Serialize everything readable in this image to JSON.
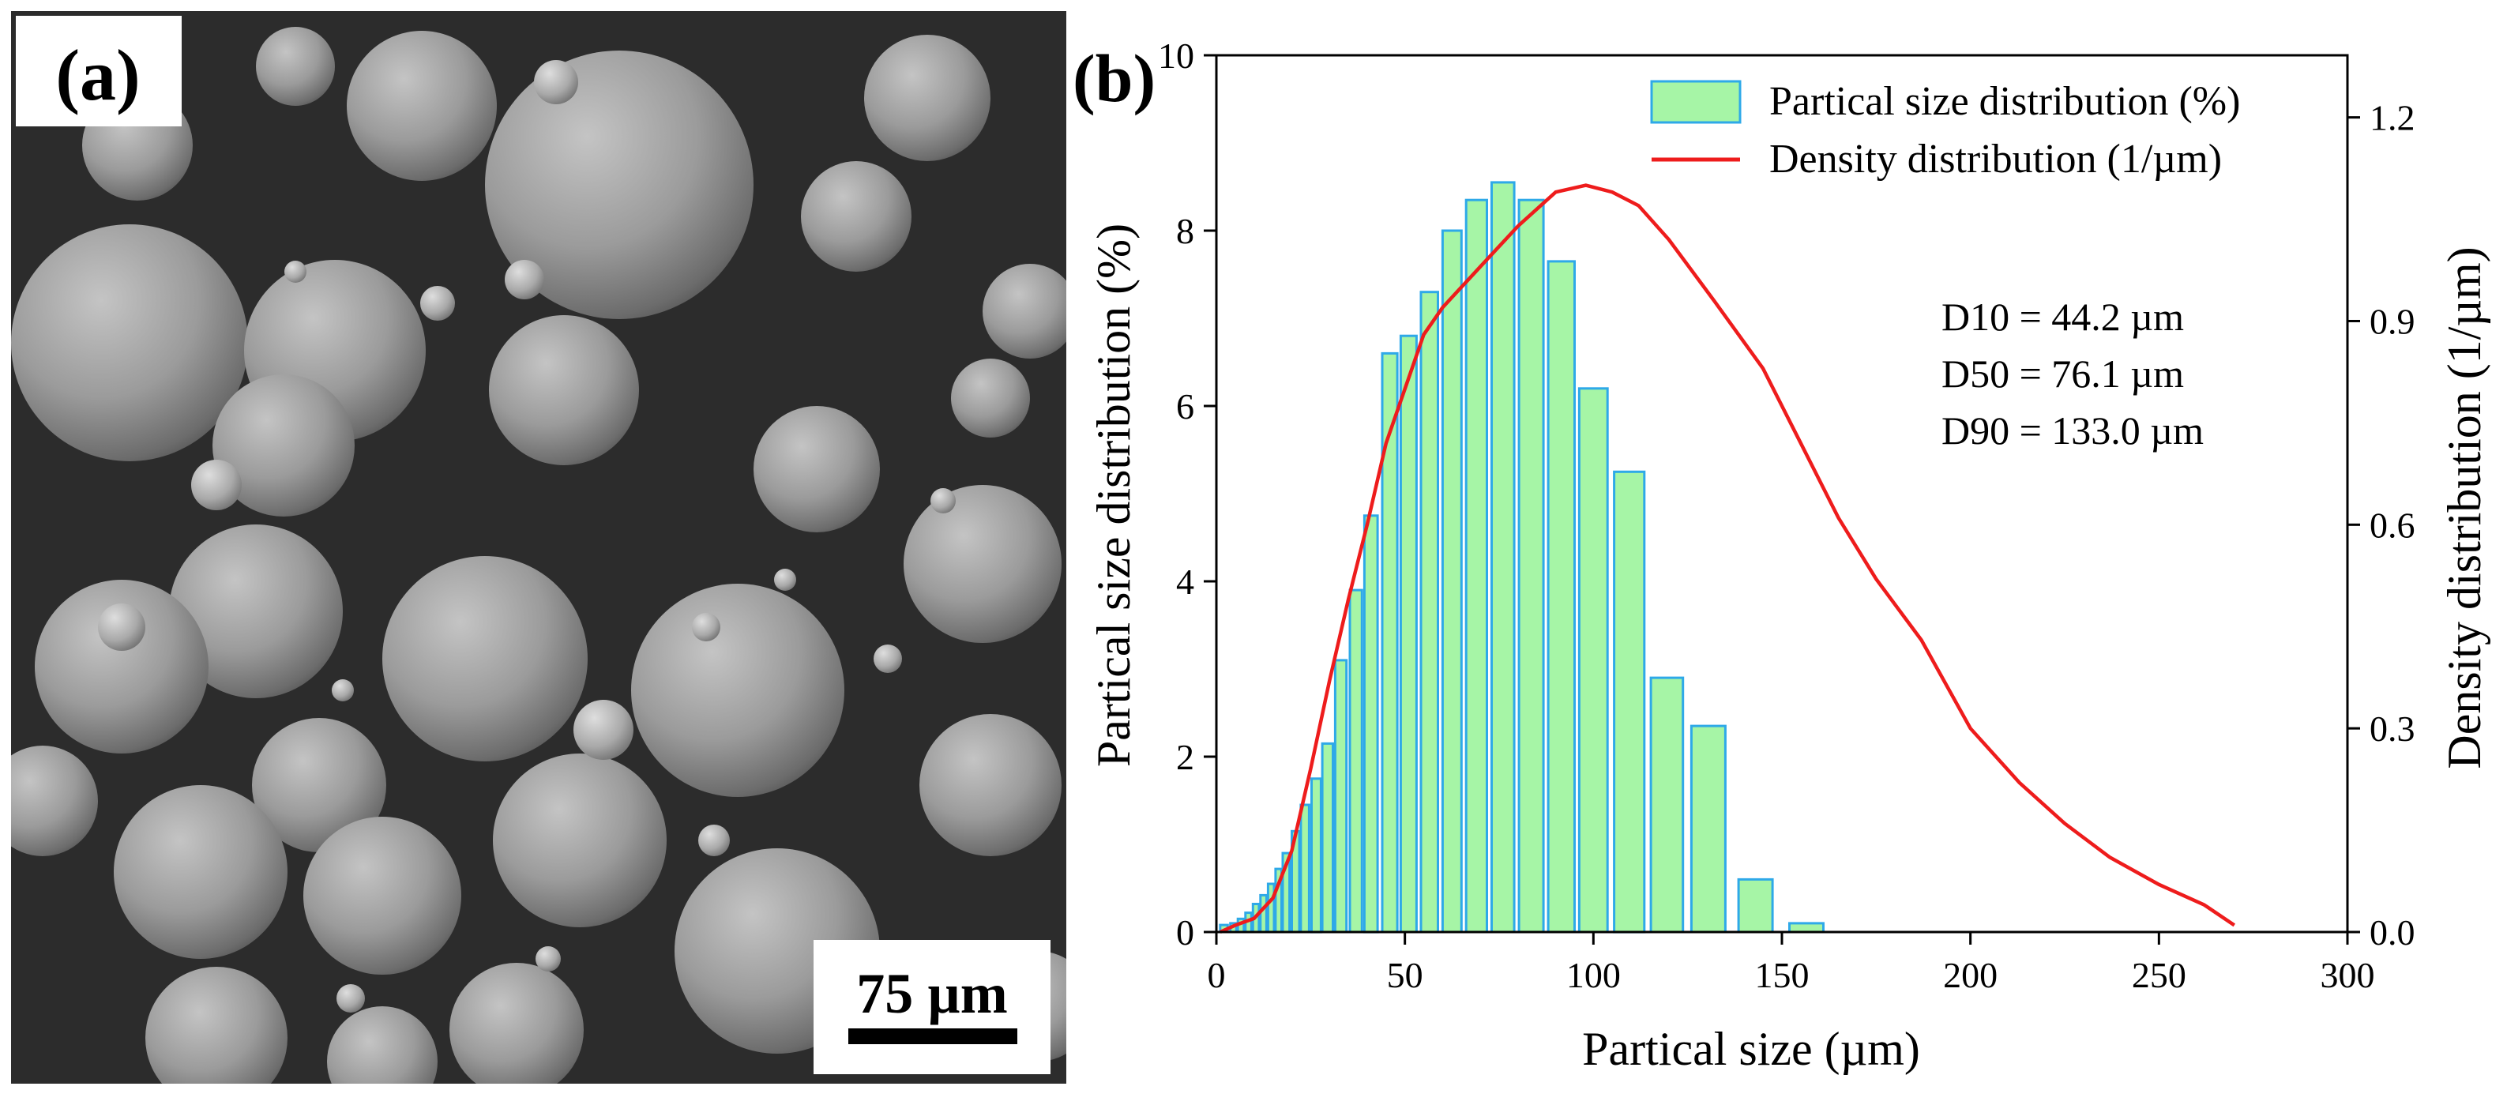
{
  "panel_a": {
    "label": "(a)",
    "scale_bar": "75 µm"
  },
  "panel_b": {
    "label": "(b)"
  },
  "chart_data": {
    "type": "bar",
    "title": "",
    "xlabel": "Partical size (µm)",
    "ylabel": "Partical size distribution (%)",
    "y2label": "Density distribution (1/µm)",
    "xlim": [
      0,
      300
    ],
    "ylim": [
      0,
      10
    ],
    "y2lim": [
      0,
      1.2915
    ],
    "xticks": [
      0,
      50,
      100,
      150,
      200,
      250,
      300
    ],
    "yticks": [
      0,
      2,
      4,
      6,
      8,
      10
    ],
    "y2ticks": [
      "0.0",
      "0.3",
      "0.6",
      "0.9",
      "1.2"
    ],
    "grid": false,
    "legend_position": "top-right",
    "colors": {
      "bar_fill": "#a6f5a6",
      "bar_edge": "#2ea9e8",
      "line": "#ee1c1c",
      "axis": "#000000"
    },
    "series": [
      {
        "name": "Partical size distribution (%)",
        "type": "bar",
        "x": [
          2.0,
          4.5,
          6.5,
          8.5,
          10.5,
          12.5,
          14.5,
          16.5,
          18.5,
          21.0,
          23.5,
          26.5,
          29.5,
          33.0,
          37.0,
          41.0,
          46.0,
          51.0,
          56.5,
          62.5,
          69.0,
          76.0,
          83.5,
          91.5,
          100.0,
          109.5,
          119.5,
          130.5,
          143.0,
          156.5,
          171.0,
          187.0,
          204.5,
          224.0,
          245.0,
          268.0
        ],
        "widths": [
          2.0,
          1.6,
          1.6,
          1.6,
          1.6,
          1.6,
          1.6,
          1.6,
          1.8,
          2.0,
          2.2,
          2.5,
          2.8,
          3.0,
          3.2,
          3.5,
          4.0,
          4.2,
          4.5,
          5.0,
          5.5,
          6.0,
          6.5,
          7.0,
          7.5,
          8.0,
          8.5,
          9.0,
          9.0,
          9.0,
          9.0,
          9.0,
          9.0,
          9.0,
          9.0,
          9.0
        ],
        "values": [
          0.08,
          0.1,
          0.15,
          0.22,
          0.32,
          0.42,
          0.55,
          0.72,
          0.9,
          1.15,
          1.45,
          1.75,
          2.15,
          3.1,
          3.9,
          4.75,
          6.6,
          6.8,
          7.3,
          8.0,
          8.35,
          8.55,
          8.35,
          7.65,
          6.2,
          5.25,
          2.9,
          2.35,
          0.6,
          0.1,
          0,
          0,
          0,
          0,
          0,
          0
        ]
      },
      {
        "name": "Density distribution (1/µm)",
        "type": "line",
        "axis": "right",
        "x": [
          1,
          5,
          10,
          15,
          20,
          25,
          30,
          35,
          40,
          45,
          50,
          55,
          60,
          70,
          80,
          90,
          98,
          105,
          112,
          120,
          132,
          145,
          155,
          165,
          175,
          187,
          200,
          213,
          225,
          237,
          250,
          262,
          270
        ],
        "values": [
          0.0,
          0.01,
          0.02,
          0.05,
          0.12,
          0.24,
          0.37,
          0.49,
          0.6,
          0.72,
          0.8,
          0.88,
          0.92,
          0.98,
          1.04,
          1.09,
          1.1,
          1.09,
          1.07,
          1.02,
          0.93,
          0.83,
          0.72,
          0.61,
          0.52,
          0.43,
          0.3,
          0.22,
          0.16,
          0.11,
          0.07,
          0.04,
          0.01
        ]
      }
    ],
    "annotations": [
      "D10 = 44.2 µm",
      "D50 = 76.1 µm",
      "D90 = 133.0 µm"
    ]
  }
}
